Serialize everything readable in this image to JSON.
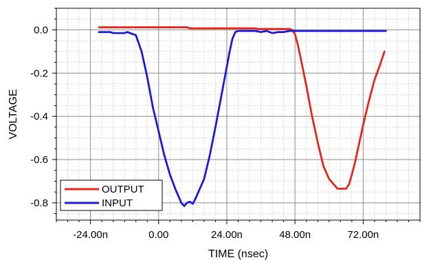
{
  "chart_data": {
    "type": "line",
    "xlabel": "TIME (nsec)",
    "ylabel": "VOLTAGE",
    "xlim": [
      -36,
      92
    ],
    "ylim": [
      -0.88,
      0.1
    ],
    "x_ticks": [
      {
        "value": -24,
        "label": "-24.00n"
      },
      {
        "value": 0,
        "label": "0.00"
      },
      {
        "value": 24,
        "label": "24.00n"
      },
      {
        "value": 48,
        "label": "48.00n"
      },
      {
        "value": 72,
        "label": "72.00n"
      }
    ],
    "y_ticks": [
      {
        "value": 0.0,
        "label": "0.0"
      },
      {
        "value": -0.2,
        "label": "-0.2"
      },
      {
        "value": -0.4,
        "label": "-0.4"
      },
      {
        "value": -0.6,
        "label": "-0.6"
      },
      {
        "value": -0.8,
        "label": "-0.8"
      }
    ],
    "grid": true,
    "legend_position": "bottom-left",
    "series": [
      {
        "name": "OUTPUT",
        "color": "#e8231b",
        "x": [
          -21,
          10,
          11,
          34,
          35,
          46,
          47,
          48,
          49,
          50,
          52,
          54,
          56,
          58,
          60,
          62,
          63,
          64,
          65,
          66,
          67,
          68,
          69,
          70,
          72,
          74,
          76,
          78,
          79.5
        ],
        "y": [
          0.012,
          0.012,
          0.007,
          0.007,
          0.004,
          0.004,
          0.0,
          -0.02,
          -0.07,
          -0.13,
          -0.26,
          -0.4,
          -0.52,
          -0.63,
          -0.69,
          -0.72,
          -0.735,
          -0.735,
          -0.735,
          -0.735,
          -0.715,
          -0.67,
          -0.62,
          -0.56,
          -0.44,
          -0.33,
          -0.23,
          -0.16,
          -0.1
        ]
      },
      {
        "name": "INPUT",
        "color": "#1a1ad6",
        "x": [
          -21,
          -17,
          -16,
          -12,
          -11,
          -8,
          -6,
          -4,
          -2,
          0,
          2,
          4,
          6,
          7,
          8,
          9,
          10,
          11,
          12,
          13,
          14,
          15,
          16,
          18,
          20,
          22,
          24,
          25,
          26,
          27,
          28,
          29,
          30,
          34,
          36,
          38,
          40,
          42,
          44,
          46,
          47.5,
          50,
          60,
          70,
          80
        ],
        "y": [
          -0.01,
          -0.01,
          -0.015,
          -0.015,
          -0.01,
          -0.025,
          -0.1,
          -0.22,
          -0.36,
          -0.47,
          -0.58,
          -0.67,
          -0.74,
          -0.77,
          -0.8,
          -0.815,
          -0.8,
          -0.795,
          -0.805,
          -0.78,
          -0.75,
          -0.72,
          -0.69,
          -0.58,
          -0.45,
          -0.31,
          -0.17,
          -0.1,
          -0.04,
          -0.01,
          -0.005,
          -0.005,
          -0.005,
          -0.005,
          -0.01,
          -0.005,
          -0.015,
          -0.01,
          -0.01,
          -0.005,
          -0.005,
          -0.005,
          -0.005,
          -0.005,
          -0.005
        ]
      }
    ]
  }
}
